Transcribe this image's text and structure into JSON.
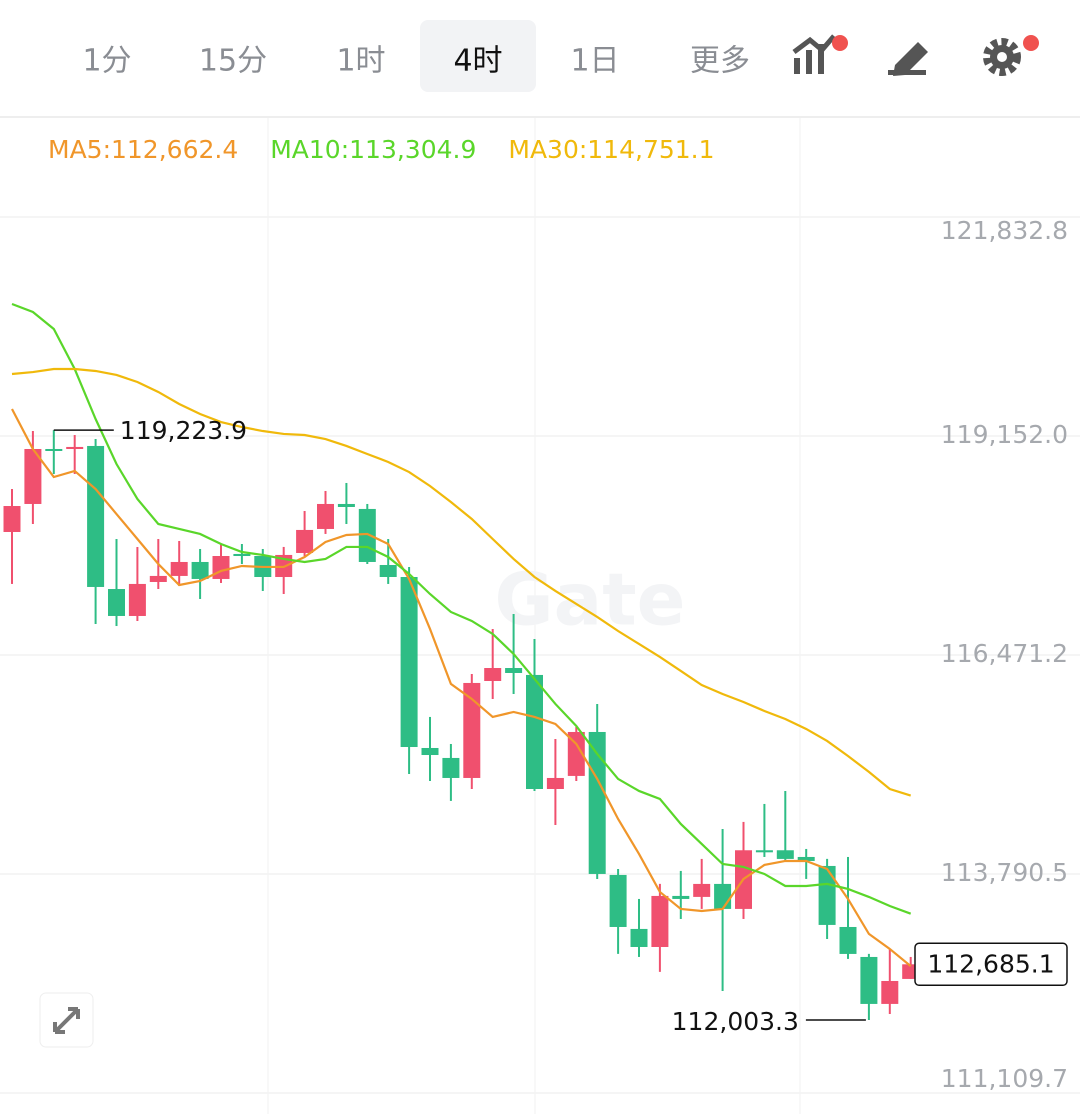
{
  "toolbar": {
    "tabs": [
      "1分",
      "15分",
      "1时",
      "4时",
      "1日",
      "更多"
    ],
    "selected": 3
  },
  "chart_data": {
    "type": "candlestick",
    "watermark": "Gate",
    "up_color": "#f0506e",
    "down_color": "#2ebd85",
    "ylim": [
      111109.7,
      121832.8
    ],
    "yticks": [
      {
        "value": 111109.7,
        "label": "111,109.7"
      },
      {
        "value": 113790.5,
        "label": "113,790.5"
      },
      {
        "value": 116471.2,
        "label": "116,471.2"
      },
      {
        "value": 119152.0,
        "label": "119,152.0"
      },
      {
        "value": 121832.8,
        "label": "121,832.8"
      }
    ],
    "grid": true,
    "open": [
      117977,
      118320,
      118993,
      118993,
      119030,
      117279,
      116949,
      117365,
      117439,
      117610,
      117402,
      117708,
      117683,
      117426,
      117720,
      118014,
      118320,
      118259,
      117573,
      117426,
      115333,
      115211,
      114966,
      116153,
      116312,
      116227,
      114831,
      114991,
      115529,
      113779,
      113118,
      112897,
      113522,
      113510,
      113669,
      113363,
      114081,
      114081,
      113999,
      113889,
      113142,
      112775,
      112200,
      112506
    ],
    "high": [
      118503,
      119213,
      119223.9,
      119164,
      119115,
      117891,
      117794,
      117891,
      117867,
      117769,
      117830,
      117830,
      117769,
      117794,
      118234,
      118479,
      118577,
      118320,
      117891,
      117549,
      115713,
      115382,
      116239,
      116790,
      116973,
      116667,
      115443,
      115590,
      115872,
      113852,
      113485,
      113669,
      113828,
      113975,
      114342,
      114428,
      114648,
      114807,
      114097,
      113975,
      113999,
      112812,
      112873,
      112775
    ],
    "low": [
      117341,
      118075,
      118687,
      118687,
      116851,
      116826,
      116888,
      117279,
      117316,
      117157,
      117353,
      117585,
      117255,
      117218,
      117683,
      117953,
      118075,
      117585,
      117341,
      115015,
      114929,
      114685,
      114831,
      115933,
      115994,
      114806,
      114391,
      114929,
      113730,
      112812,
      112775,
      112592,
      113240,
      113363,
      112359,
      113240,
      113999,
      113950,
      113730,
      112995,
      112751,
      112003.3,
      112077,
      112506
    ],
    "close": [
      118295,
      118993,
      118969,
      119018,
      117304,
      116949,
      117341,
      117439,
      117610,
      117402,
      117683,
      117683,
      117426,
      117696,
      118002,
      118320,
      118283,
      117610,
      117426,
      115345,
      115247,
      114966,
      116129,
      116312,
      116251,
      114831,
      114966,
      115529,
      113791,
      113142,
      112897,
      113522,
      113485,
      113669,
      113363,
      114081,
      114056,
      113975,
      113950,
      113167,
      112812,
      112200,
      112481,
      112685.1
    ],
    "series": [
      {
        "name": "MA5:112,662.4",
        "color": "#f0962a",
        "values": [
          119483,
          118993,
          118650,
          118724,
          118503,
          118197,
          117891,
          117585,
          117328,
          117377,
          117500,
          117561,
          117549,
          117549,
          117671,
          117855,
          117940,
          117953,
          117830,
          117402,
          116790,
          116117,
          115933,
          115713,
          115774,
          115713,
          115627,
          115382,
          114954,
          114464,
          114036,
          113571,
          113363,
          113338,
          113363,
          113730,
          113901,
          113950,
          113950,
          113852,
          113485,
          113057,
          112873,
          112662.4
        ]
      },
      {
        "name": "MA10:113,304.9",
        "color": "#5ad62a",
        "values": [
          120768,
          120670,
          120462,
          119972,
          119360,
          118809,
          118381,
          118075,
          118014,
          117953,
          117830,
          117732,
          117696,
          117647,
          117610,
          117647,
          117794,
          117794,
          117671,
          117463,
          117218,
          116998,
          116888,
          116729,
          116484,
          116178,
          115872,
          115602,
          115260,
          114954,
          114807,
          114709,
          114403,
          114158,
          113913,
          113877,
          113791,
          113644,
          113644,
          113669,
          113607,
          113510,
          113399,
          113304.9
        ]
      },
      {
        "name": "MA30:114,751.1",
        "color": "#f0b90b",
        "values": [
          119911,
          119935,
          119972,
          119972,
          119948,
          119899,
          119813,
          119691,
          119544,
          119421,
          119323,
          119262,
          119213,
          119177,
          119164,
          119115,
          119030,
          118932,
          118834,
          118711,
          118540,
          118344,
          118136,
          117891,
          117647,
          117426,
          117255,
          117096,
          116937,
          116765,
          116606,
          116447,
          116276,
          116104,
          115994,
          115896,
          115786,
          115688,
          115566,
          115419,
          115235,
          115040,
          114831,
          114751.1
        ]
      }
    ],
    "annotations": {
      "max": {
        "value": 119223.9,
        "label": "119,223.9",
        "index": 2
      },
      "min": {
        "value": 112003.3,
        "label": "112,003.3",
        "index": 41
      },
      "last": {
        "value": 112685.1,
        "label": "112,685.1"
      }
    }
  }
}
